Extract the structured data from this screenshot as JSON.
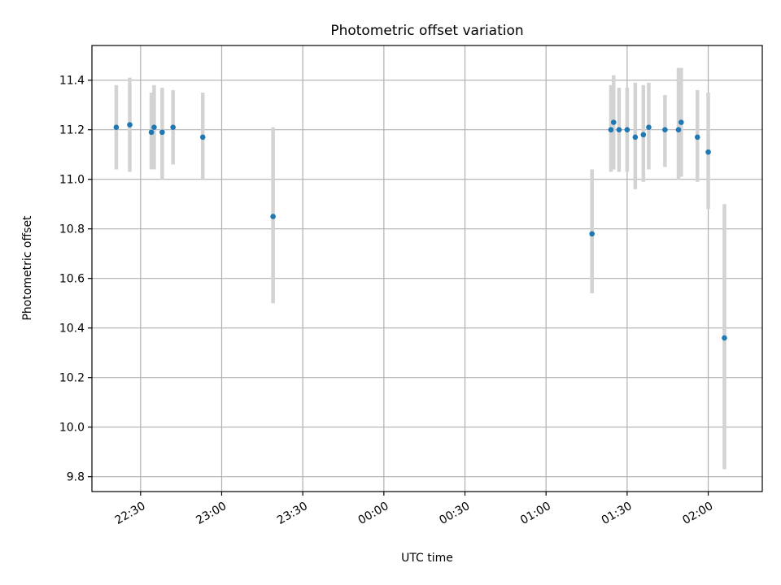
{
  "chart_data": {
    "type": "scatter",
    "title": "Photometric offset variation",
    "xlabel": "UTC time",
    "ylabel": "Photometric offset",
    "xlim": [
      "22:12",
      "02:20"
    ],
    "ylim": [
      9.74,
      11.54
    ],
    "x_ticks": [
      "22:30",
      "23:00",
      "23:30",
      "00:00",
      "00:30",
      "01:00",
      "01:30",
      "02:00"
    ],
    "y_ticks": [
      "9.8",
      "10.0",
      "10.2",
      "10.4",
      "10.6",
      "10.8",
      "11.0",
      "11.2",
      "11.4"
    ],
    "grid": true,
    "colors": {
      "point": "#1f77b4",
      "errorbar": "#d3d3d3",
      "grid": "#b0b0b0"
    },
    "points": [
      {
        "x": "22:21",
        "y": 11.21,
        "ylow": 11.04,
        "yhigh": 11.38
      },
      {
        "x": "22:26",
        "y": 11.22,
        "ylow": 11.03,
        "yhigh": 11.41
      },
      {
        "x": "22:34",
        "y": 11.19,
        "ylow": 11.04,
        "yhigh": 11.35
      },
      {
        "x": "22:35",
        "y": 11.21,
        "ylow": 11.04,
        "yhigh": 11.38
      },
      {
        "x": "22:38",
        "y": 11.19,
        "ylow": 11.0,
        "yhigh": 11.37
      },
      {
        "x": "22:42",
        "y": 11.21,
        "ylow": 11.06,
        "yhigh": 11.36
      },
      {
        "x": "22:53",
        "y": 11.17,
        "ylow": 11.0,
        "yhigh": 11.35
      },
      {
        "x": "23:19",
        "y": 10.85,
        "ylow": 10.5,
        "yhigh": 11.21
      },
      {
        "x": "01:17",
        "y": 10.78,
        "ylow": 10.54,
        "yhigh": 11.04
      },
      {
        "x": "01:24",
        "y": 11.2,
        "ylow": 11.03,
        "yhigh": 11.38
      },
      {
        "x": "01:25",
        "y": 11.23,
        "ylow": 11.04,
        "yhigh": 11.42
      },
      {
        "x": "01:27",
        "y": 11.2,
        "ylow": 11.03,
        "yhigh": 11.37
      },
      {
        "x": "01:30",
        "y": 11.2,
        "ylow": 11.03,
        "yhigh": 11.37
      },
      {
        "x": "01:33",
        "y": 11.17,
        "ylow": 10.96,
        "yhigh": 11.39
      },
      {
        "x": "01:36",
        "y": 11.18,
        "ylow": 10.99,
        "yhigh": 11.38
      },
      {
        "x": "01:38",
        "y": 11.21,
        "ylow": 11.04,
        "yhigh": 11.39
      },
      {
        "x": "01:44",
        "y": 11.2,
        "ylow": 11.05,
        "yhigh": 11.34
      },
      {
        "x": "01:49",
        "y": 11.2,
        "ylow": 11.0,
        "yhigh": 11.45
      },
      {
        "x": "01:50",
        "y": 11.23,
        "ylow": 11.01,
        "yhigh": 11.45
      },
      {
        "x": "01:56",
        "y": 11.17,
        "ylow": 10.99,
        "yhigh": 11.36
      },
      {
        "x": "02:00",
        "y": 11.11,
        "ylow": 10.88,
        "yhigh": 11.35
      },
      {
        "x": "02:06",
        "y": 10.36,
        "ylow": 9.83,
        "yhigh": 10.9
      }
    ]
  }
}
